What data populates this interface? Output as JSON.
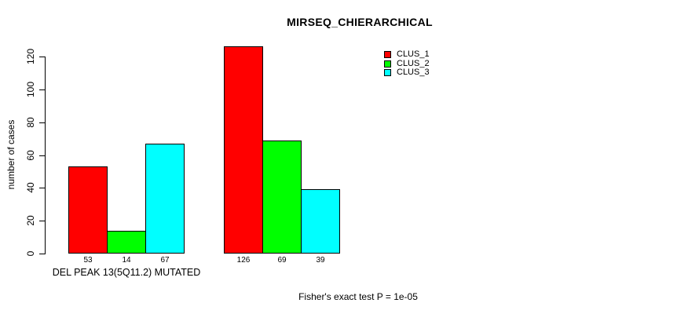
{
  "chart_data": {
    "type": "bar",
    "title": "MIRSEQ_CHIERARCHICAL",
    "ylabel": "number of cases",
    "xlabel": "",
    "ylim": [
      0,
      120
    ],
    "yticks": [
      0,
      20,
      40,
      60,
      80,
      100,
      120
    ],
    "grid": false,
    "legend_position": "top-right",
    "categories": [
      "DEL PEAK 13(5Q11.2) MUTATED",
      ""
    ],
    "series": [
      {
        "name": "CLUS_1",
        "color": "#ff0000",
        "values": [
          53,
          126
        ]
      },
      {
        "name": "CLUS_2",
        "color": "#00ff00",
        "values": [
          14,
          69
        ]
      },
      {
        "name": "CLUS_3",
        "color": "#00ffff",
        "values": [
          67,
          39
        ]
      }
    ],
    "bar_value_labels": [
      [
        53,
        14,
        67
      ],
      [
        126,
        69,
        39
      ]
    ],
    "annotation": "Fisher's exact test P = 1e-05"
  }
}
